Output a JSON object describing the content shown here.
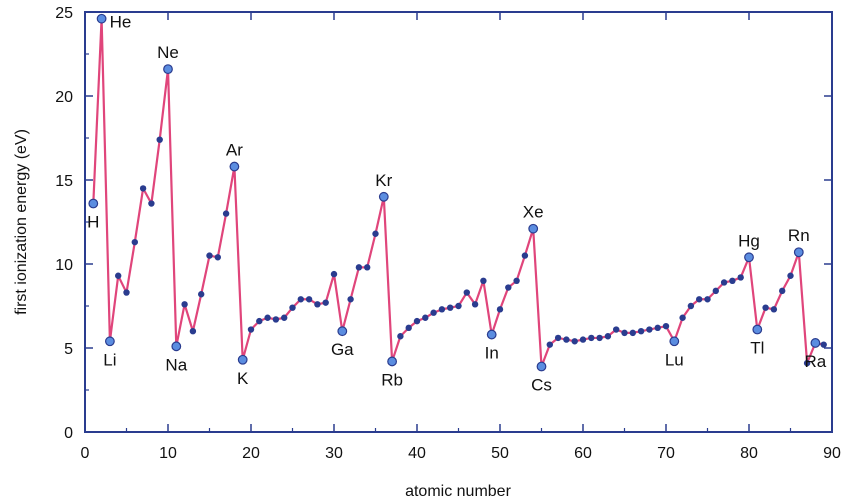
{
  "chart_data": {
    "type": "line",
    "title": "",
    "xlabel": "atomic number",
    "ylabel": "first ionization energy (eV)",
    "xlim": [
      0,
      90
    ],
    "ylim": [
      0,
      25
    ],
    "xticks": [
      "0",
      "10",
      "20",
      "30",
      "40",
      "50",
      "60",
      "70",
      "80",
      "90"
    ],
    "yticks": [
      "0",
      "5",
      "10",
      "15",
      "20",
      "25"
    ],
    "grid": false,
    "line_color": "#e0457b",
    "marker_color": "#2a3c8f",
    "highlight_color": "#5b8de0",
    "frame_color": "#2a3c8f",
    "series": [
      {
        "x": [
          1,
          2,
          3,
          4,
          5,
          6,
          7,
          8,
          9,
          10,
          11,
          12,
          13,
          14,
          15,
          16,
          17,
          18,
          19,
          20,
          21,
          22,
          23,
          24,
          25,
          26,
          27,
          28,
          29,
          30,
          31,
          32,
          33,
          34,
          35,
          36,
          37,
          38,
          39,
          40,
          41,
          42,
          43,
          44,
          45,
          46,
          47,
          48,
          49,
          50,
          51,
          52,
          53,
          54,
          55,
          56,
          57,
          58,
          59,
          60,
          61,
          62,
          63,
          64,
          65,
          66,
          67,
          68,
          69,
          70,
          71,
          72,
          73,
          74,
          75,
          76,
          77,
          78,
          79,
          80,
          81,
          82,
          83,
          84,
          85,
          86,
          87,
          88,
          89
        ],
        "y": [
          13.6,
          24.6,
          5.4,
          9.3,
          8.3,
          11.3,
          14.5,
          13.6,
          17.4,
          21.6,
          5.1,
          7.6,
          6.0,
          8.2,
          10.5,
          10.4,
          13.0,
          15.8,
          4.3,
          6.1,
          6.6,
          6.8,
          6.7,
          6.8,
          7.4,
          7.9,
          7.9,
          7.6,
          7.7,
          9.4,
          6.0,
          7.9,
          9.8,
          9.8,
          11.8,
          14.0,
          4.2,
          5.7,
          6.2,
          6.6,
          6.8,
          7.1,
          7.3,
          7.4,
          7.5,
          8.3,
          7.6,
          9.0,
          5.8,
          7.3,
          8.6,
          9.0,
          10.5,
          12.1,
          3.9,
          5.2,
          5.6,
          5.5,
          5.4,
          5.5,
          5.6,
          5.6,
          5.7,
          6.1,
          5.9,
          5.9,
          6.0,
          6.1,
          6.2,
          6.3,
          5.4,
          6.8,
          7.5,
          7.9,
          7.9,
          8.4,
          8.9,
          9.0,
          9.2,
          10.4,
          6.1,
          7.4,
          7.3,
          8.4,
          9.3,
          10.7,
          4.1,
          5.3,
          5.2
        ]
      }
    ],
    "highlight_labels": [
      {
        "z": 1,
        "symbol": "H",
        "pos": "below"
      },
      {
        "z": 2,
        "symbol": "He",
        "pos": "right"
      },
      {
        "z": 3,
        "symbol": "Li",
        "pos": "below"
      },
      {
        "z": 10,
        "symbol": "Ne",
        "pos": "above"
      },
      {
        "z": 11,
        "symbol": "Na",
        "pos": "below"
      },
      {
        "z": 18,
        "symbol": "Ar",
        "pos": "above"
      },
      {
        "z": 19,
        "symbol": "K",
        "pos": "below"
      },
      {
        "z": 31,
        "symbol": "Ga",
        "pos": "below"
      },
      {
        "z": 36,
        "symbol": "Kr",
        "pos": "above"
      },
      {
        "z": 37,
        "symbol": "Rb",
        "pos": "below"
      },
      {
        "z": 49,
        "symbol": "In",
        "pos": "below"
      },
      {
        "z": 54,
        "symbol": "Xe",
        "pos": "above"
      },
      {
        "z": 55,
        "symbol": "Cs",
        "pos": "below"
      },
      {
        "z": 71,
        "symbol": "Lu",
        "pos": "below"
      },
      {
        "z": 80,
        "symbol": "Hg",
        "pos": "above"
      },
      {
        "z": 81,
        "symbol": "Tl",
        "pos": "below"
      },
      {
        "z": 86,
        "symbol": "Rn",
        "pos": "above"
      },
      {
        "z": 88,
        "symbol": "Ra",
        "pos": "below"
      }
    ]
  }
}
